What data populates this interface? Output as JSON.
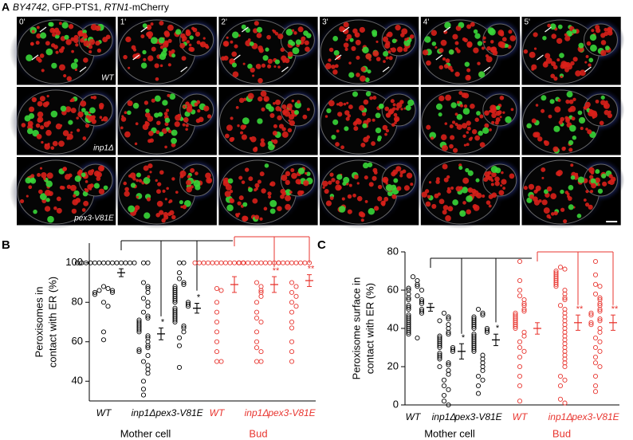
{
  "panel_a": {
    "letter": "A",
    "title_parts": [
      "BY4742",
      ", GFP-PTS1, ",
      "RTN1",
      "-mCherry"
    ],
    "times": [
      "0'",
      "1'",
      "2'",
      "3'",
      "4'",
      "5'"
    ],
    "strains": [
      "WT",
      "inp1Δ",
      "pex3-V81E"
    ]
  },
  "chart_data": [
    {
      "type": "strip",
      "panel": "B",
      "ylabel": [
        "Peroxisomes in",
        "contact with ER (%)"
      ],
      "ylim": [
        30,
        110
      ],
      "yticks": [
        40,
        60,
        80,
        100
      ],
      "series": [
        {
          "name": "Mother cell",
          "color": "#000000",
          "categories": [
            "WT",
            "inp1Δ",
            "pex3-V81E"
          ],
          "points": [
            [
              100,
              100,
              100,
              100,
              100,
              100,
              100,
              100,
              100,
              100,
              100,
              100,
              100,
              100,
              88,
              87,
              86,
              86,
              85,
              85,
              84,
              80,
              78,
              65,
              61
            ],
            [
              100,
              100,
              90,
              88,
              87,
              85,
              82,
              80,
              78,
              75,
              73,
              72,
              71,
              70,
              69,
              68,
              67,
              66,
              65,
              63,
              62,
              60,
              58,
              57,
              56,
              55,
              53,
              50,
              48,
              46,
              44,
              40,
              36,
              33
            ],
            [
              100,
              100,
              95,
              92,
              90,
              89,
              88,
              87,
              86,
              85,
              84,
              83,
              82,
              81,
              80,
              80,
              79,
              78,
              77,
              76,
              75,
              74,
              73,
              72,
              71,
              70,
              68,
              67,
              65,
              62,
              58,
              47
            ]
          ],
          "means": [
            95,
            64,
            77
          ],
          "errors": [
            2,
            3,
            2.5
          ],
          "stars": [
            {
              "index": 1,
              "label": "*"
            },
            {
              "index": 2,
              "label": "*"
            }
          ]
        },
        {
          "name": "Bud",
          "color": "#e8352f",
          "categories": [
            "WT",
            "inp1Δ",
            "pex3-V81E"
          ],
          "points": [
            [
              100,
              100,
              100,
              100,
              100,
              100,
              100,
              100,
              100,
              100,
              100,
              100,
              87,
              86,
              80,
              75,
              70,
              65,
              60,
              55,
              50,
              50
            ],
            [
              100,
              100,
              100,
              100,
              100,
              100,
              100,
              100,
              100,
              100,
              90,
              88,
              86,
              85,
              83,
              80,
              75,
              72,
              70,
              65,
              60,
              57,
              55,
              50,
              50
            ],
            [
              100,
              100,
              100,
              100,
              100,
              100,
              100,
              100,
              90,
              88,
              85,
              83,
              80,
              78,
              75,
              70,
              67,
              60,
              55,
              50
            ]
          ],
          "means": [
            89,
            89,
            91
          ],
          "errors": [
            4,
            4,
            3
          ],
          "stars": [
            {
              "index": 1,
              "label": "**"
            },
            {
              "index": 2,
              "label": "**"
            }
          ]
        }
      ]
    },
    {
      "type": "strip",
      "panel": "C",
      "ylabel": [
        "Peroxisome surface in",
        "contact with ER (%)"
      ],
      "ylim": [
        0,
        80
      ],
      "yticks": [
        0,
        20,
        40,
        60,
        80
      ],
      "series": [
        {
          "name": "Mother cell",
          "color": "#000000",
          "categories": [
            "WT",
            "inp1Δ",
            "pex3-V81E"
          ],
          "points": [
            [
              67,
              65,
              63,
              62,
              61,
              60,
              60,
              58,
              57,
              56,
              55,
              55,
              54,
              53,
              52,
              51,
              50,
              50,
              49,
              48,
              47,
              46,
              45,
              44,
              43,
              42,
              41,
              40,
              39,
              38,
              37,
              35
            ],
            [
              48,
              46,
              45,
              44,
              42,
              40,
              38,
              37,
              36,
              35,
              34,
              33,
              32,
              31,
              30,
              30,
              29,
              28,
              27,
              26,
              25,
              24,
              22,
              21,
              20,
              18,
              16,
              13,
              10,
              8,
              5,
              2,
              0
            ],
            [
              50,
              48,
              47,
              46,
              45,
              44,
              43,
              42,
              41,
              40,
              40,
              39,
              38,
              37,
              36,
              35,
              34,
              33,
              32,
              31,
              30,
              29,
              28,
              26,
              24,
              22,
              20,
              18,
              15,
              13,
              10,
              6
            ]
          ],
          "means": [
            51,
            28,
            34
          ],
          "errors": [
            2,
            4,
            3
          ],
          "stars": [
            {
              "index": 1,
              "label": "*"
            },
            {
              "index": 2,
              "label": "*"
            }
          ]
        },
        {
          "name": "Bud",
          "color": "#e8352f",
          "categories": [
            "WT",
            "inp1Δ",
            "pex3-V81E"
          ],
          "points": [
            [
              75,
              65,
              60,
              57,
              55,
              53,
              52,
              50,
              49,
              48,
              47,
              46,
              45,
              44,
              43,
              42,
              41,
              40,
              38,
              36,
              33,
              30,
              28,
              25,
              20,
              15,
              10,
              2
            ],
            [
              72,
              71,
              70,
              69,
              68,
              67,
              66,
              65,
              64,
              63,
              62,
              60,
              58,
              56,
              55,
              52,
              50,
              48,
              46,
              44,
              42,
              40,
              38,
              36,
              34,
              32,
              30,
              28,
              26,
              24,
              22,
              20,
              15,
              13,
              10,
              3,
              1
            ],
            [
              75,
              68,
              63,
              62,
              58,
              56,
              55,
              53,
              52,
              50,
              49,
              48,
              47,
              45,
              44,
              43,
              42,
              40,
              38,
              35,
              33,
              30,
              28,
              25,
              22,
              20,
              15,
              10,
              7
            ]
          ],
          "means": [
            40,
            43,
            43
          ],
          "errors": [
            3,
            4,
            4
          ],
          "stars": [
            {
              "index": 1,
              "label": "**"
            },
            {
              "index": 2,
              "label": "**"
            }
          ]
        }
      ]
    }
  ]
}
